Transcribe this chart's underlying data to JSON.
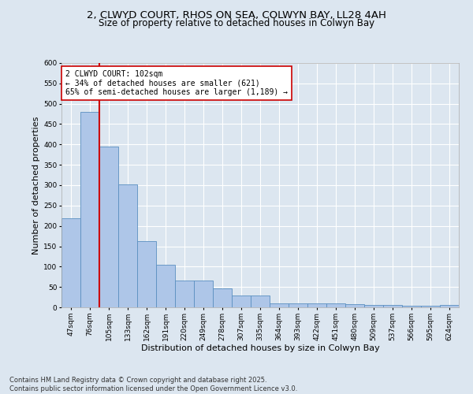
{
  "title_line1": "2, CLWYD COURT, RHOS ON SEA, COLWYN BAY, LL28 4AH",
  "title_line2": "Size of property relative to detached houses in Colwyn Bay",
  "xlabel": "Distribution of detached houses by size in Colwyn Bay",
  "ylabel": "Number of detached properties",
  "categories": [
    "47sqm",
    "76sqm",
    "105sqm",
    "133sqm",
    "162sqm",
    "191sqm",
    "220sqm",
    "249sqm",
    "278sqm",
    "307sqm",
    "335sqm",
    "364sqm",
    "393sqm",
    "422sqm",
    "451sqm",
    "480sqm",
    "509sqm",
    "537sqm",
    "566sqm",
    "595sqm",
    "624sqm"
  ],
  "values": [
    218,
    480,
    395,
    302,
    163,
    105,
    65,
    65,
    47,
    30,
    30,
    10,
    10,
    10,
    10,
    8,
    5,
    5,
    4,
    4,
    5
  ],
  "bar_color": "#aec6e8",
  "bar_edge_color": "#5a8fc0",
  "vline_x_index": 2,
  "vline_color": "#cc0000",
  "annotation_text": "2 CLWYD COURT: 102sqm\n← 34% of detached houses are smaller (621)\n65% of semi-detached houses are larger (1,189) →",
  "annotation_box_color": "#ffffff",
  "annotation_box_edge_color": "#cc0000",
  "background_color": "#dce6f0",
  "plot_bg_color": "#dce6f0",
  "ylim": [
    0,
    600
  ],
  "yticks": [
    0,
    50,
    100,
    150,
    200,
    250,
    300,
    350,
    400,
    450,
    500,
    550,
    600
  ],
  "footer_text": "Contains HM Land Registry data © Crown copyright and database right 2025.\nContains public sector information licensed under the Open Government Licence v3.0.",
  "title_fontsize": 9.5,
  "subtitle_fontsize": 8.5,
  "axis_label_fontsize": 8,
  "tick_fontsize": 6.5,
  "footer_fontsize": 6,
  "annotation_fontsize": 7
}
